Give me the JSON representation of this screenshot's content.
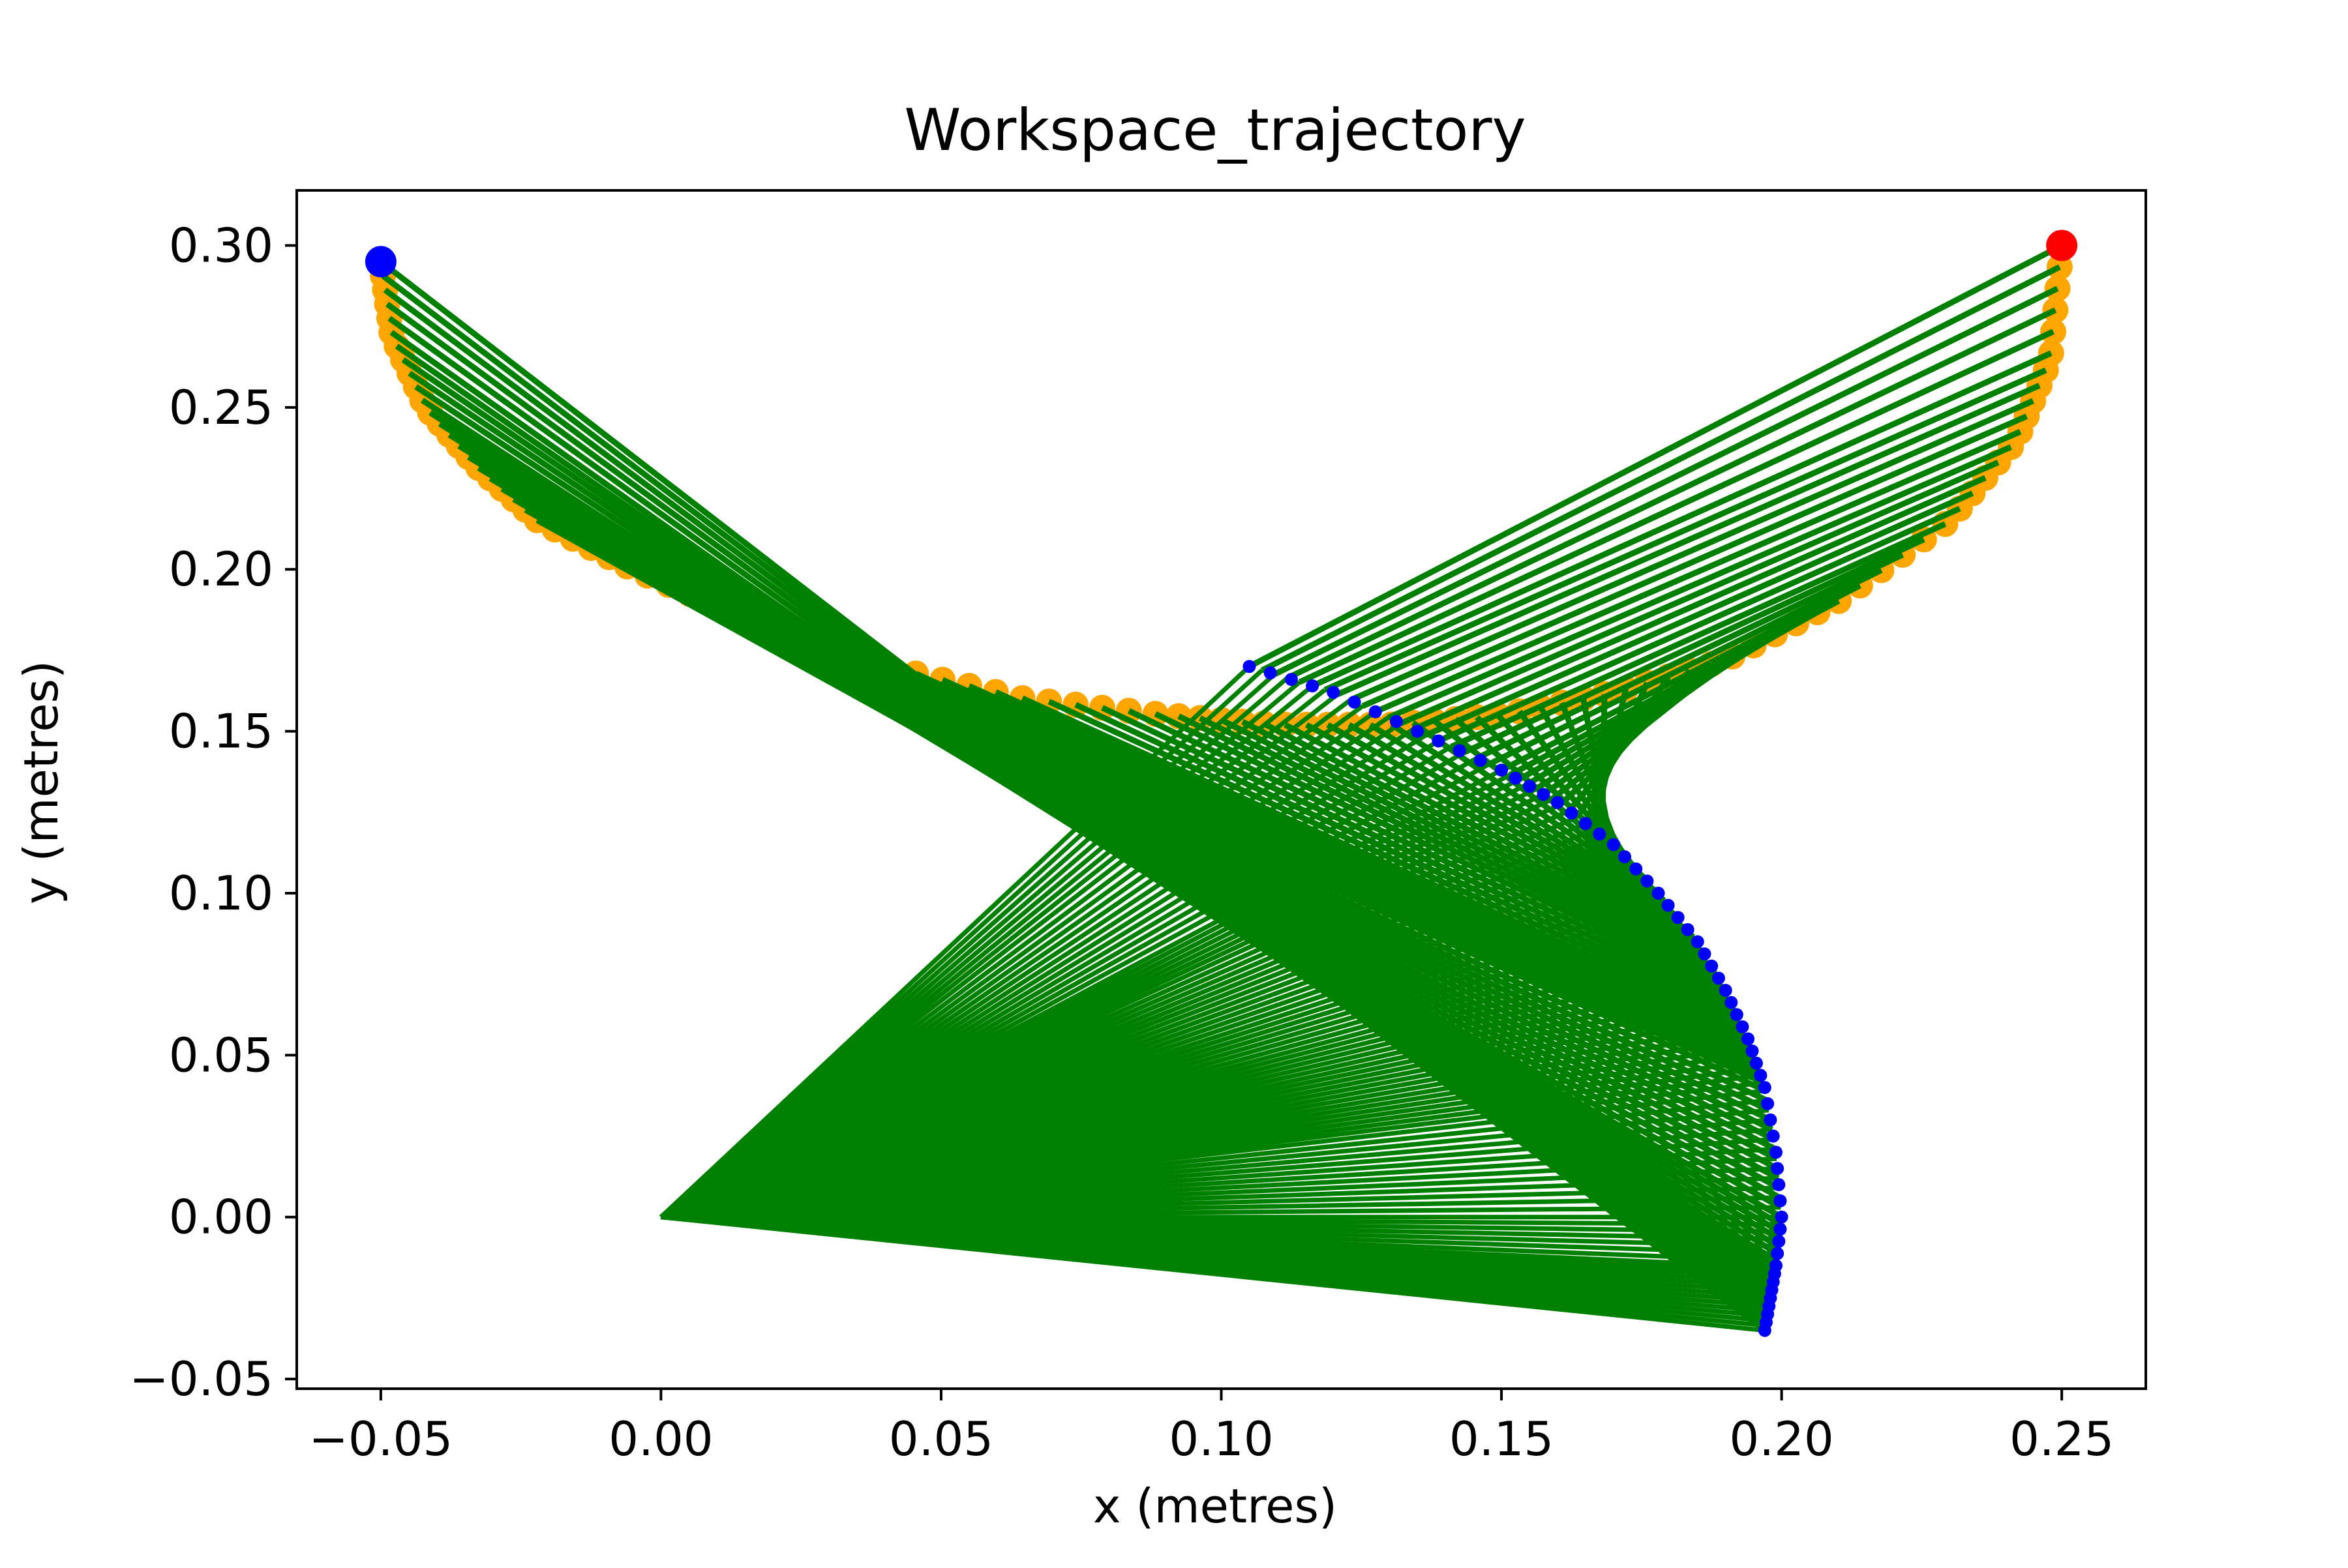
{
  "chart_data": {
    "type": "line",
    "title": "Workspace_trajectory",
    "xlabel": "x (metres)",
    "ylabel": "y (metres)",
    "xlim": [
      -0.065,
      0.265
    ],
    "ylim": [
      -0.053,
      0.317
    ],
    "xticks": [
      -0.05,
      0.0,
      0.05,
      0.1,
      0.15,
      0.2,
      0.25
    ],
    "xtick_labels": [
      "−0.05",
      "0.00",
      "0.05",
      "0.10",
      "0.15",
      "0.20",
      "0.25"
    ],
    "yticks": [
      -0.05,
      0.0,
      0.05,
      0.1,
      0.15,
      0.2,
      0.25,
      0.3
    ],
    "ytick_labels": [
      "−0.05",
      "0.00",
      "0.05",
      "0.10",
      "0.15",
      "0.20",
      "0.25",
      "0.30"
    ],
    "grid": false,
    "legend": "none",
    "base": [
      0.0,
      0.0
    ],
    "start_point": [
      -0.05,
      0.295
    ],
    "end_point": [
      0.25,
      0.3
    ],
    "colors": {
      "links": "#008000",
      "end_effector_path": "#ffa500",
      "elbow_path": "#0000ff",
      "start_marker": "#0000ff",
      "end_marker": "#ff0000"
    },
    "end_effector_path": [
      [
        -0.05,
        0.295
      ],
      [
        -0.048,
        0.272
      ],
      [
        -0.042,
        0.25
      ],
      [
        -0.033,
        0.232
      ],
      [
        -0.022,
        0.215
      ],
      [
        -0.005,
        0.2
      ],
      [
        0.015,
        0.185
      ],
      [
        0.04,
        0.17
      ],
      [
        0.065,
        0.16
      ],
      [
        0.09,
        0.155
      ],
      [
        0.11,
        0.152
      ],
      [
        0.13,
        0.152
      ],
      [
        0.15,
        0.155
      ],
      [
        0.17,
        0.162
      ],
      [
        0.19,
        0.172
      ],
      [
        0.21,
        0.19
      ],
      [
        0.23,
        0.215
      ],
      [
        0.242,
        0.24
      ],
      [
        0.248,
        0.265
      ],
      [
        0.25,
        0.3
      ]
    ],
    "elbow_path": [
      [
        0.105,
        0.17
      ],
      [
        0.12,
        0.162
      ],
      [
        0.135,
        0.15
      ],
      [
        0.15,
        0.138
      ],
      [
        0.16,
        0.128
      ],
      [
        0.17,
        0.115
      ],
      [
        0.178,
        0.1
      ],
      [
        0.185,
        0.085
      ],
      [
        0.19,
        0.07
      ],
      [
        0.194,
        0.055
      ],
      [
        0.197,
        0.04
      ],
      [
        0.199,
        0.02
      ],
      [
        0.2,
        0.0
      ],
      [
        0.199,
        -0.015
      ],
      [
        0.198,
        -0.025
      ],
      [
        0.197,
        -0.035
      ]
    ]
  }
}
